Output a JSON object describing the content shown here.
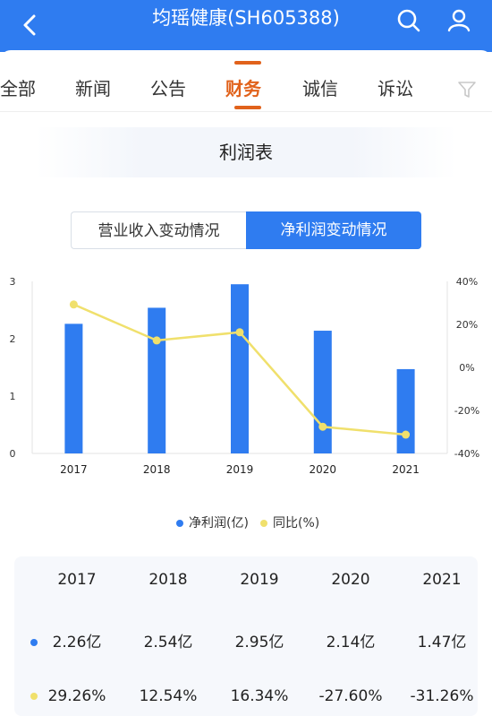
{
  "header": {
    "title": "均瑶健康(SH605388)"
  },
  "tabs": [
    {
      "label": "全部"
    },
    {
      "label": "新闻"
    },
    {
      "label": "公告"
    },
    {
      "label": "财务"
    },
    {
      "label": "诚信"
    },
    {
      "label": "诉讼"
    }
  ],
  "active_tab": "财务",
  "section": {
    "title": "利润表"
  },
  "segment": {
    "left_label": "营业收入变动情况",
    "right_label": "净利润变动情况"
  },
  "colors": {
    "accent_blue": "#2f7cf0",
    "accent_orange": "#e1621b",
    "line_yellow": "#f0e06c"
  },
  "chart_data": {
    "type": "bar",
    "categories": [
      "2017",
      "2018",
      "2019",
      "2020",
      "2021"
    ],
    "series": [
      {
        "name": "净利润(亿)",
        "type": "bar",
        "axis": "left",
        "values": [
          2.26,
          2.54,
          2.95,
          2.14,
          1.47
        ],
        "color": "#2f7cf0"
      },
      {
        "name": "同比(%)",
        "type": "line",
        "axis": "right",
        "values": [
          29.26,
          12.54,
          16.34,
          -27.6,
          -31.26
        ],
        "color": "#f0e06c"
      }
    ],
    "left_axis": {
      "ylim": [
        0,
        3
      ],
      "ticks": [
        "0",
        "1",
        "2",
        "3"
      ]
    },
    "right_axis": {
      "ylim": [
        -40,
        40
      ],
      "ticks": [
        "40%",
        "20%",
        "0%",
        "-20%",
        "-40%"
      ]
    },
    "legend_position": "bottom",
    "grid": false
  },
  "table": {
    "years": [
      "2017",
      "2018",
      "2019",
      "2020",
      "2021"
    ],
    "net_profit": [
      "2.26亿",
      "2.54亿",
      "2.95亿",
      "2.14亿",
      "1.47亿"
    ],
    "yoy": [
      "29.26%",
      "12.54%",
      "16.34%",
      "-27.60%",
      "-31.26%"
    ]
  }
}
